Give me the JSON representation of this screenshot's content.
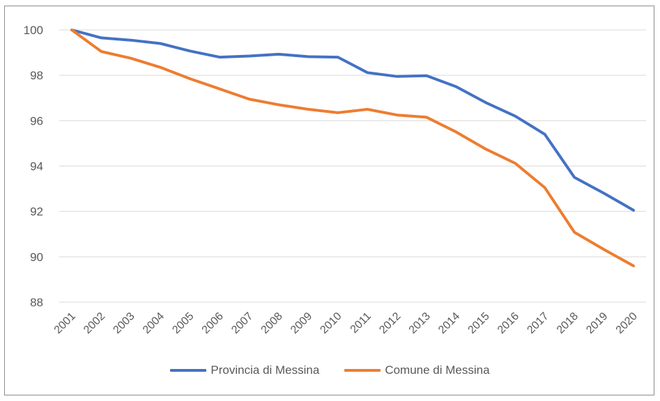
{
  "chart_data": {
    "type": "line",
    "title": "",
    "xlabel": "",
    "ylabel": "",
    "x": [
      "2001",
      "2002",
      "2003",
      "2004",
      "2005",
      "2006",
      "2007",
      "2008",
      "2009",
      "2010",
      "2011",
      "2012",
      "2013",
      "2014",
      "2015",
      "2016",
      "2017",
      "2018",
      "2019",
      "2020"
    ],
    "ylim": [
      88,
      100
    ],
    "yticks": [
      88,
      90,
      92,
      94,
      96,
      98,
      100
    ],
    "ytick_labels": [
      "88",
      "90",
      "92",
      "94",
      "96",
      "98",
      "100"
    ],
    "grid": true,
    "legend_position": "bottom",
    "series": [
      {
        "name": "Provincia di Messina",
        "color": "#4472C4",
        "values": [
          100.0,
          99.65,
          99.55,
          99.4,
          99.07,
          98.8,
          98.85,
          98.93,
          98.82,
          98.8,
          98.12,
          97.95,
          97.98,
          97.5,
          96.8,
          96.2,
          95.4,
          93.5,
          92.8,
          92.05
        ]
      },
      {
        "name": "Comune di Messina",
        "color": "#ED7D31",
        "values": [
          100.0,
          99.05,
          98.75,
          98.35,
          97.85,
          97.4,
          96.95,
          96.7,
          96.5,
          96.35,
          96.5,
          96.25,
          96.15,
          95.5,
          94.75,
          94.12,
          93.05,
          91.08,
          90.32,
          89.6
        ]
      }
    ]
  }
}
